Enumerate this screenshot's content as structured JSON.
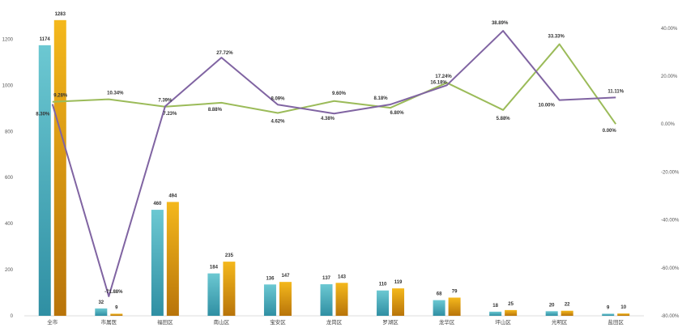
{
  "chart_data": {
    "type": "bar",
    "categories": [
      "全市",
      "市属医",
      "福田区",
      "南山区",
      "宝安区",
      "龙岗区",
      "罗湖区",
      "龙华区",
      "坪山区",
      "光明区",
      "盐田区"
    ],
    "series": [
      {
        "values": [
          1174,
          32,
          460,
          184,
          136,
          137,
          110,
          68,
          18,
          20,
          9
        ],
        "color": "#4fb3bf",
        "kind": "bar"
      },
      {
        "values": [
          1283,
          9,
          494,
          235,
          147,
          143,
          119,
          79,
          25,
          22,
          10
        ],
        "color": "#e8a612",
        "kind": "bar"
      },
      {
        "values": [
          8.3,
          -71.88,
          7.39,
          27.72,
          8.09,
          4.38,
          8.18,
          16.18,
          38.89,
          10.0,
          11.11
        ],
        "color": "#8064a2",
        "kind": "line",
        "axis": "right"
      },
      {
        "values": [
          9.28,
          10.34,
          7.23,
          8.88,
          4.62,
          9.6,
          6.8,
          17.24,
          5.88,
          33.33,
          0.0
        ],
        "color": "#9bbb59",
        "kind": "line",
        "axis": "right"
      }
    ],
    "ylim": [
      0,
      1300
    ],
    "y_ticks": [
      0,
      200,
      400,
      600,
      800,
      1000,
      1200
    ],
    "y2lim": [
      -80,
      45
    ],
    "y2_ticks": [
      "-80.00%",
      "-60.00%",
      "-40.00%",
      "-20.00%",
      "0.00%",
      "20.00%",
      "40.00%"
    ],
    "y2_tick_values": [
      -80,
      -60,
      -40,
      -20,
      0,
      20,
      40
    ],
    "line_labels": {
      "purple": [
        "8.30%",
        "-71.88%",
        "7.39%",
        "27.72%",
        "8.09%",
        "4.38%",
        "8.18%",
        "16.18%",
        "38.89%",
        "10.00%",
        "11.11%"
      ],
      "green": [
        "9.28%",
        "10.34%",
        "7.23%",
        "8.88%",
        "4.62%",
        "9.60%",
        "6.80%",
        "17.24%",
        "5.88%",
        "33.33%",
        "0.00%"
      ]
    },
    "xlabel": "",
    "ylabel": "",
    "title": "",
    "grid": false
  }
}
